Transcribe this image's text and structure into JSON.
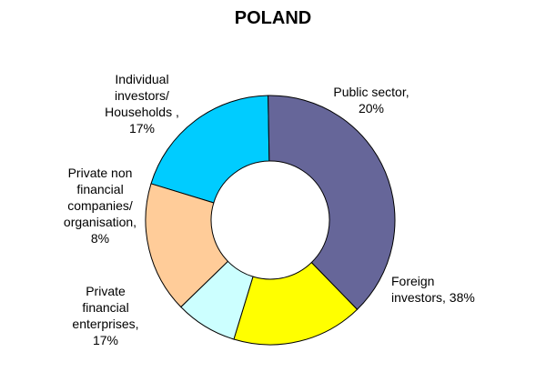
{
  "chart_data": {
    "type": "pie",
    "variant": "donut",
    "title": "POLAND",
    "slices": [
      {
        "name": "Public sector",
        "label_text": "Public sector,\n20%",
        "value": 20,
        "color": "#00CCFF"
      },
      {
        "name": "Foreign investors",
        "label_text": "Foreign\ninvestors, 38%",
        "value": 38,
        "color": "#666699"
      },
      {
        "name": "Private financial enterprises",
        "label_text": "Private\nfinancial\nenterprises,\n17%",
        "value": 17,
        "color": "#FFFF00"
      },
      {
        "name": "Private non financial companies/ organisation",
        "label_text": "Private non\nfinancial\ncompanies/\norganisation,\n8%",
        "value": 8,
        "color": "#CCFFFF"
      },
      {
        "name": "Individual investors/ Households",
        "label_text": "Individual\ninvestors/\nHouseholds ,\n17%",
        "value": 17,
        "color": "#FFCC99"
      }
    ],
    "legend": "none"
  }
}
